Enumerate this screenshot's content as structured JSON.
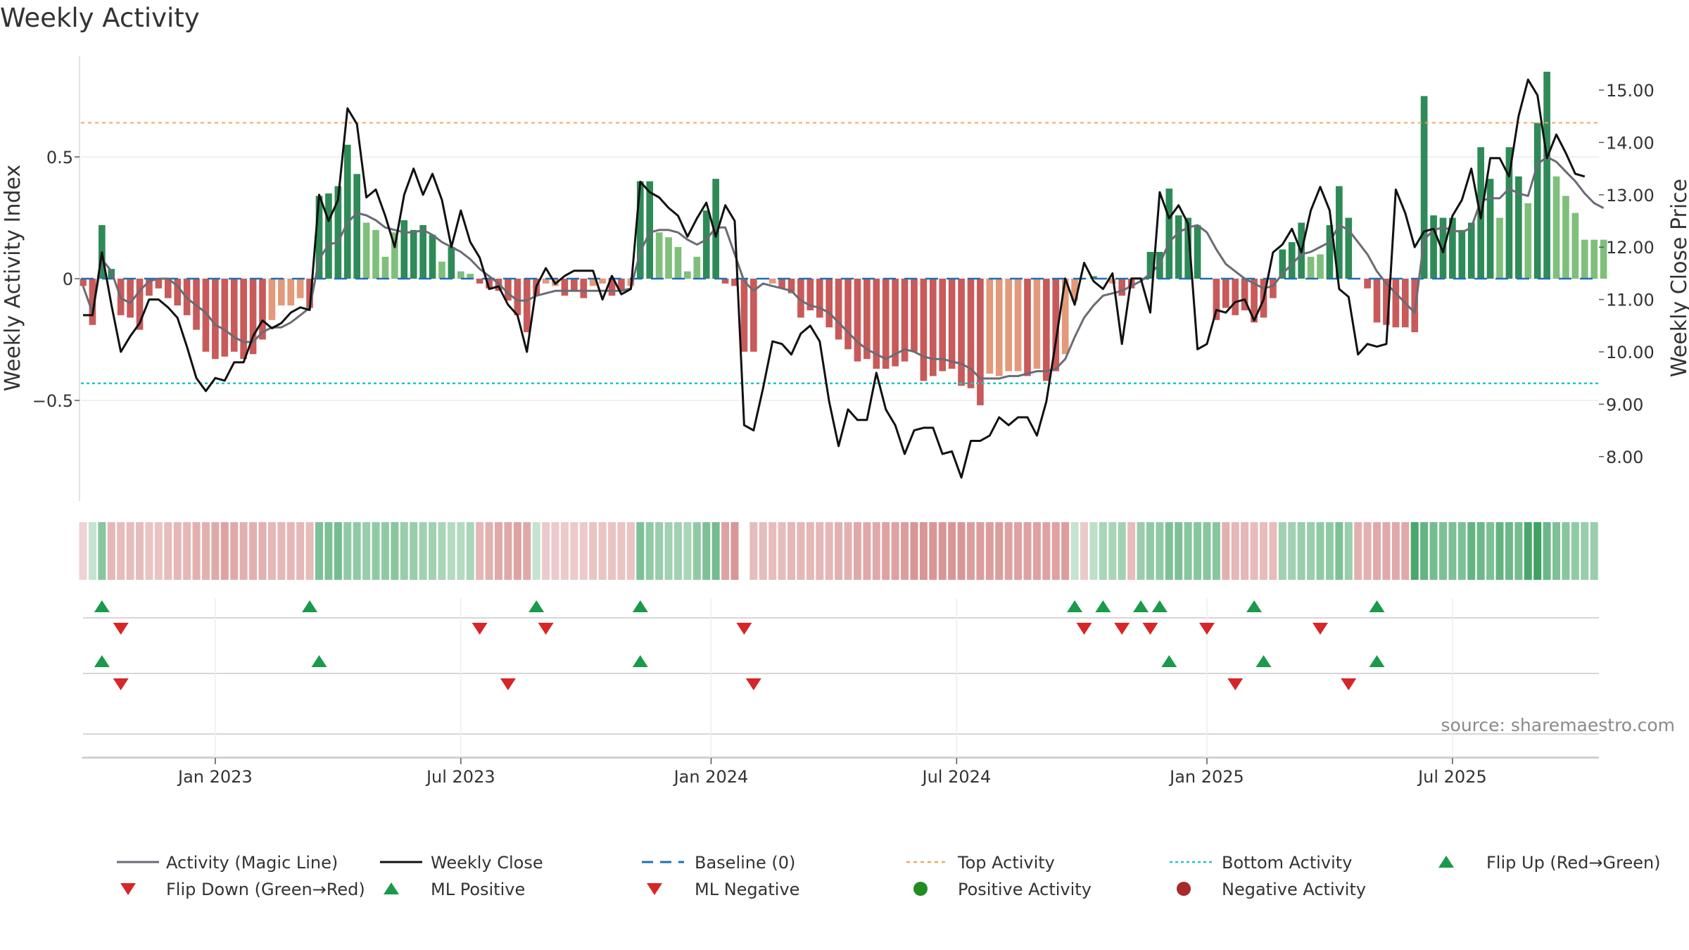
{
  "chart_data": {
    "type": "bar",
    "title": "Weekly Activity",
    "ylabel_left": "Weekly Activity Index",
    "ylabel_right": "Weekly Close Price",
    "source": "source: sharemaestro.com",
    "left_axis": {
      "range": [
        -0.92,
        0.92
      ],
      "ticks": [
        0.5,
        0,
        -0.5
      ],
      "tick_labels": [
        "0.5",
        "0",
        "−0.5"
      ]
    },
    "right_axis": {
      "range": [
        7.2,
        15.8
      ],
      "ticks": [
        15,
        14,
        13,
        12,
        11,
        10,
        9,
        8
      ],
      "tick_labels": [
        "15.00",
        "14.00",
        "13.00",
        "12.00",
        "11.00",
        "10.00",
        "9.00",
        "8.00"
      ]
    },
    "x_axis": {
      "n_weeks": 158,
      "ticks": [
        {
          "index": 14,
          "label": "Jan 2023"
        },
        {
          "index": 40,
          "label": "Jul 2023"
        },
        {
          "index": 66.5,
          "label": "Jan 2024"
        },
        {
          "index": 92.5,
          "label": "Jul 2024"
        },
        {
          "index": 119,
          "label": "Jan 2025"
        },
        {
          "index": 145,
          "label": "Jul 2025"
        }
      ]
    },
    "thresholds": {
      "baseline": 0,
      "top_activity": 0.64,
      "bottom_activity": -0.43
    },
    "activity": [
      -0.03,
      -0.19,
      0.22,
      0.04,
      -0.15,
      -0.16,
      -0.21,
      -0.07,
      -0.04,
      -0.08,
      -0.11,
      -0.15,
      -0.21,
      -0.3,
      -0.33,
      -0.32,
      -0.3,
      -0.33,
      -0.31,
      -0.25,
      -0.17,
      -0.11,
      -0.11,
      -0.08,
      -0.12,
      0.34,
      0.35,
      0.38,
      0.55,
      0.43,
      0.23,
      0.2,
      0.09,
      0.19,
      0.24,
      0.2,
      0.22,
      0.18,
      0.07,
      0.13,
      0.03,
      0.02,
      -0.02,
      -0.04,
      -0.05,
      -0.09,
      -0.15,
      -0.22,
      -0.07,
      -0.02,
      -0.03,
      -0.07,
      -0.05,
      -0.08,
      -0.03,
      -0.02,
      -0.07,
      -0.05,
      -0.03,
      0.4,
      0.4,
      0.19,
      0.17,
      0.13,
      0.03,
      0.09,
      0.28,
      0.41,
      -0.02,
      -0.03,
      -0.3,
      -0.3,
      0.0,
      -0.02,
      -0.04,
      -0.06,
      -0.16,
      -0.13,
      -0.16,
      -0.2,
      -0.25,
      -0.29,
      -0.34,
      -0.33,
      -0.37,
      -0.37,
      -0.36,
      -0.34,
      -0.3,
      -0.42,
      -0.4,
      -0.38,
      -0.37,
      -0.44,
      -0.45,
      -0.52,
      -0.39,
      -0.4,
      -0.38,
      -0.38,
      -0.4,
      -0.37,
      -0.42,
      -0.38,
      -0.31,
      -0.09,
      0.0,
      0.01,
      0.0,
      -0.02,
      -0.07,
      -0.04,
      0.0,
      0.11,
      0.11,
      0.37,
      0.26,
      0.25,
      0.22,
      0.0,
      -0.17,
      -0.12,
      -0.15,
      -0.13,
      -0.18,
      -0.16,
      -0.08,
      0.12,
      0.15,
      0.23,
      0.09,
      0.1,
      0.22,
      0.38,
      0.25,
      0.0,
      -0.04,
      -0.18,
      -0.19,
      -0.2,
      -0.2,
      -0.22,
      0.75,
      0.26,
      0.25,
      0.25,
      0.2,
      0.23,
      0.54,
      0.41,
      0.25,
      0.54,
      0.42,
      0.31,
      0.64,
      0.85,
      0.42,
      0.34,
      0.27,
      0.16,
      0.16,
      0.16
    ],
    "magic_line": [
      -0.03,
      -0.14,
      0.08,
      0.03,
      -0.08,
      -0.1,
      -0.05,
      -0.01,
      0.0,
      0.0,
      -0.03,
      -0.08,
      -0.11,
      -0.14,
      -0.19,
      -0.21,
      -0.24,
      -0.26,
      -0.26,
      -0.22,
      -0.2,
      -0.2,
      -0.18,
      -0.15,
      -0.12,
      0.08,
      0.14,
      0.15,
      0.23,
      0.27,
      0.26,
      0.24,
      0.21,
      0.2,
      0.19,
      0.19,
      0.2,
      0.18,
      0.15,
      0.13,
      0.11,
      0.08,
      0.04,
      0.01,
      -0.02,
      -0.06,
      -0.09,
      -0.09,
      -0.07,
      -0.06,
      -0.05,
      -0.05,
      -0.05,
      -0.05,
      -0.05,
      -0.05,
      -0.05,
      -0.05,
      -0.04,
      0.11,
      0.19,
      0.2,
      0.2,
      0.19,
      0.16,
      0.14,
      0.16,
      0.21,
      0.21,
      0.1,
      -0.01,
      -0.05,
      -0.02,
      -0.03,
      -0.04,
      -0.05,
      -0.09,
      -0.11,
      -0.12,
      -0.14,
      -0.18,
      -0.22,
      -0.26,
      -0.29,
      -0.31,
      -0.33,
      -0.31,
      -0.29,
      -0.3,
      -0.32,
      -0.33,
      -0.33,
      -0.34,
      -0.35,
      -0.37,
      -0.41,
      -0.41,
      -0.41,
      -0.4,
      -0.4,
      -0.39,
      -0.38,
      -0.38,
      -0.37,
      -0.33,
      -0.24,
      -0.16,
      -0.11,
      -0.07,
      -0.06,
      -0.05,
      -0.03,
      -0.01,
      0.02,
      0.06,
      0.15,
      0.19,
      0.21,
      0.22,
      0.19,
      0.12,
      0.06,
      0.03,
      0.0,
      -0.02,
      -0.04,
      -0.03,
      0.02,
      0.06,
      0.1,
      0.11,
      0.13,
      0.15,
      0.22,
      0.2,
      0.15,
      0.1,
      0.03,
      -0.02,
      -0.06,
      -0.1,
      -0.14,
      0.16,
      0.2,
      0.21,
      0.2,
      0.19,
      0.21,
      0.32,
      0.33,
      0.33,
      0.37,
      0.35,
      0.34,
      0.47,
      0.5,
      0.48,
      0.44,
      0.4,
      0.35,
      0.31,
      0.29
    ],
    "weekly_close": [
      10.7,
      10.7,
      11.9,
      10.9,
      10.0,
      10.3,
      10.55,
      11.0,
      11.0,
      10.85,
      10.65,
      10.1,
      9.5,
      9.25,
      9.5,
      9.45,
      9.8,
      9.8,
      10.3,
      10.6,
      10.45,
      10.55,
      10.75,
      10.85,
      10.8,
      13.0,
      12.5,
      12.9,
      14.65,
      14.35,
      12.95,
      13.1,
      12.6,
      12.0,
      13.0,
      13.5,
      13.0,
      13.4,
      12.9,
      12.0,
      12.7,
      12.1,
      11.8,
      11.2,
      11.25,
      10.9,
      10.7,
      10.0,
      11.25,
      11.6,
      11.3,
      11.45,
      11.55,
      11.55,
      11.55,
      11.0,
      11.45,
      11.1,
      11.2,
      13.25,
      13.05,
      12.95,
      12.75,
      12.6,
      12.2,
      12.55,
      12.85,
      12.2,
      12.8,
      12.5,
      8.6,
      8.5,
      9.3,
      10.2,
      10.15,
      9.95,
      10.35,
      10.5,
      10.2,
      9.05,
      8.2,
      8.9,
      8.7,
      8.7,
      9.6,
      8.9,
      8.6,
      8.05,
      8.5,
      8.55,
      8.55,
      8.05,
      8.1,
      7.6,
      8.3,
      8.3,
      8.4,
      8.75,
      8.6,
      8.75,
      8.75,
      8.4,
      9.05,
      10.2,
      11.4,
      10.9,
      11.7,
      11.35,
      11.2,
      11.5,
      10.15,
      11.4,
      11.4,
      10.75,
      13.05,
      12.55,
      12.8,
      12.45,
      10.05,
      10.15,
      10.8,
      10.75,
      10.95,
      11.0,
      10.6,
      11.0,
      11.9,
      12.05,
      12.35,
      11.9,
      12.7,
      13.15,
      12.7,
      11.2,
      11.05,
      9.95,
      10.15,
      10.1,
      10.15,
      13.1,
      12.65,
      12.0,
      12.3,
      12.35,
      11.9,
      12.6,
      12.9,
      13.5,
      12.55,
      13.7,
      13.7,
      13.35,
      14.5,
      15.2,
      14.9,
      13.7,
      14.15,
      13.8,
      13.4,
      13.35
    ],
    "heat_strip": [
      -0.15,
      0.15,
      0.5,
      -0.35,
      -0.3,
      -0.3,
      -0.3,
      -0.25,
      -0.25,
      -0.3,
      -0.35,
      -0.35,
      -0.4,
      -0.4,
      -0.45,
      -0.5,
      -0.45,
      -0.4,
      -0.4,
      -0.4,
      -0.35,
      -0.35,
      -0.35,
      -0.35,
      -0.3,
      0.55,
      0.55,
      0.6,
      0.45,
      0.45,
      0.4,
      0.45,
      0.45,
      0.5,
      0.4,
      0.4,
      0.35,
      0.35,
      0.3,
      0.25,
      0.25,
      0.3,
      -0.35,
      -0.4,
      -0.45,
      -0.45,
      -0.5,
      -0.45,
      0.15,
      -0.2,
      -0.2,
      -0.2,
      -0.2,
      -0.2,
      -0.25,
      -0.25,
      -0.25,
      -0.25,
      -0.25,
      0.55,
      0.45,
      0.4,
      0.35,
      0.35,
      0.3,
      0.45,
      0.55,
      0.6,
      -0.5,
      -0.6,
      null,
      -0.3,
      -0.3,
      -0.3,
      -0.3,
      -0.35,
      -0.35,
      -0.35,
      -0.35,
      -0.35,
      -0.4,
      -0.4,
      -0.45,
      -0.45,
      -0.45,
      -0.5,
      -0.5,
      -0.55,
      -0.6,
      -0.6,
      -0.6,
      -0.6,
      -0.6,
      -0.6,
      -0.55,
      -0.55,
      -0.55,
      -0.55,
      -0.5,
      -0.5,
      -0.5,
      -0.5,
      -0.5,
      -0.5,
      -0.55,
      0.15,
      -0.2,
      0.2,
      0.3,
      0.3,
      0.35,
      -0.3,
      0.4,
      0.45,
      0.45,
      0.55,
      0.55,
      0.5,
      0.5,
      0.5,
      0.5,
      -0.4,
      -0.35,
      -0.35,
      -0.3,
      -0.3,
      -0.3,
      0.35,
      0.35,
      0.4,
      0.4,
      0.45,
      0.45,
      0.55,
      0.4,
      -0.4,
      -0.4,
      -0.45,
      -0.45,
      -0.45,
      -0.45,
      0.85,
      0.7,
      0.6,
      0.55,
      0.55,
      0.55,
      0.7,
      0.65,
      0.55,
      0.7,
      0.65,
      0.6,
      0.85,
      0.9,
      0.65,
      0.55,
      0.5,
      0.45,
      0.4,
      0.4
    ],
    "flip_up": [
      2,
      24,
      48,
      59,
      105,
      108,
      112,
      114,
      124,
      137
    ],
    "flip_down": [
      4,
      42,
      49,
      70,
      106,
      110,
      113,
      119,
      131
    ],
    "ml_positive": [
      2,
      25,
      59,
      115,
      125,
      137
    ],
    "ml_negative": [
      4,
      45,
      71,
      122,
      134
    ],
    "colors": {
      "pos_strong": "#2e8b57",
      "pos_light": "#7fbf7b",
      "neg_strong": "#c85a5a",
      "neg_light": "#e39a7a",
      "magic_line": "#6b6b75",
      "close": "#111111",
      "baseline": "#1f6fb4",
      "top": "#f4a460",
      "bottom": "#20c4c4",
      "flip_up": "#1a9a4a",
      "flip_down": "#d62728",
      "pos_dot": "#228b22",
      "neg_dot": "#a52a2a"
    },
    "legend": [
      {
        "key": "magic",
        "label": "Activity (Magic Line)"
      },
      {
        "key": "close",
        "label": "Weekly Close"
      },
      {
        "key": "baseline",
        "label": "Baseline (0)"
      },
      {
        "key": "top",
        "label": "Top Activity"
      },
      {
        "key": "bottom",
        "label": "Bottom Activity"
      },
      {
        "key": "flipup",
        "label": "Flip Up (Red→Green)"
      },
      {
        "key": "flipdown",
        "label": "Flip Down (Green→Red)"
      },
      {
        "key": "mlpos",
        "label": "ML Positive"
      },
      {
        "key": "mlneg",
        "label": "ML Negative"
      },
      {
        "key": "posdot",
        "label": "Positive Activity"
      },
      {
        "key": "negdot",
        "label": "Negative Activity"
      }
    ]
  }
}
